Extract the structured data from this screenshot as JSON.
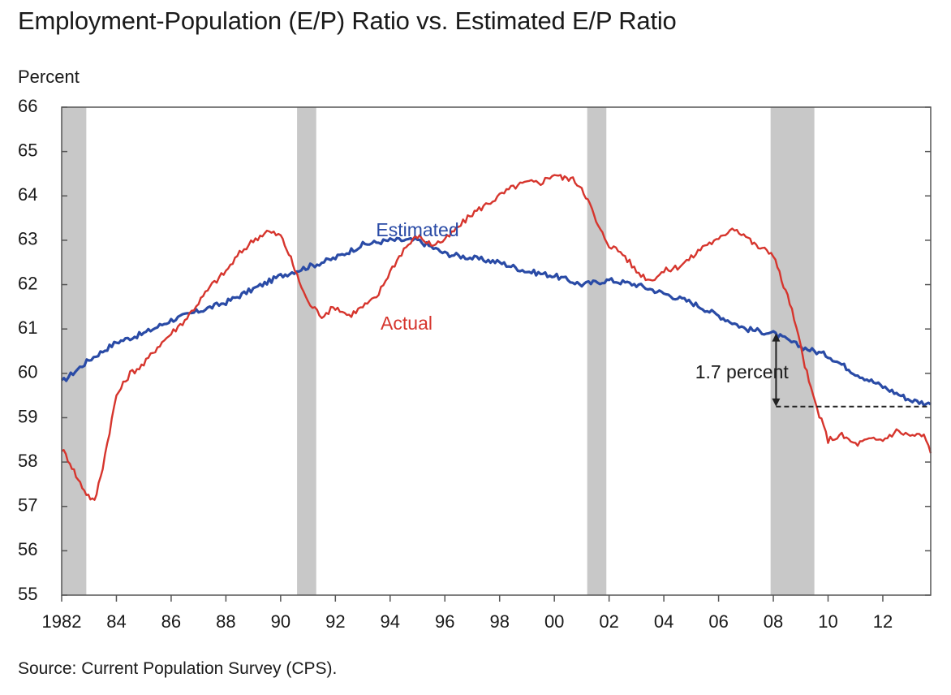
{
  "title": "Employment-Population (E/P) Ratio vs. Estimated E/P Ratio",
  "source": "Source: Current Population Survey (CPS).",
  "chart_data": {
    "type": "line",
    "title": "Employment-Population (E/P) Ratio vs. Estimated E/P Ratio",
    "ylabel": "Percent",
    "xlabel": "",
    "xlim": [
      1982.0,
      2013.75
    ],
    "ylim": [
      55,
      66
    ],
    "yticks": [
      "55",
      "56",
      "57",
      "58",
      "59",
      "60",
      "61",
      "62",
      "63",
      "64",
      "65",
      "66"
    ],
    "xticks": [
      {
        "x": 1982,
        "label": "1982"
      },
      {
        "x": 1984,
        "label": "84"
      },
      {
        "x": 1986,
        "label": "86"
      },
      {
        "x": 1988,
        "label": "88"
      },
      {
        "x": 1990,
        "label": "90"
      },
      {
        "x": 1992,
        "label": "92"
      },
      {
        "x": 1994,
        "label": "94"
      },
      {
        "x": 1996,
        "label": "96"
      },
      {
        "x": 1998,
        "label": "98"
      },
      {
        "x": 2000,
        "label": "00"
      },
      {
        "x": 2002,
        "label": "02"
      },
      {
        "x": 2004,
        "label": "04"
      },
      {
        "x": 2006,
        "label": "06"
      },
      {
        "x": 2008,
        "label": "08"
      },
      {
        "x": 2010,
        "label": "10"
      },
      {
        "x": 2012,
        "label": "12"
      }
    ],
    "grid": false,
    "recessions": [
      [
        1982.0,
        1982.9
      ],
      [
        1990.6,
        1991.3
      ],
      [
        2001.2,
        2001.9
      ],
      [
        2007.9,
        2009.5
      ]
    ],
    "series": [
      {
        "name": "Estimated",
        "color": "#2a4ba6",
        "x": [
          1982.0,
          1983.0,
          1984.0,
          1985.0,
          1986.0,
          1987.0,
          1988.0,
          1989.0,
          1990.0,
          1991.0,
          1992.0,
          1993.0,
          1994.0,
          1995.0,
          1996.0,
          1997.0,
          1998.0,
          1999.0,
          2000.0,
          2001.0,
          2002.0,
          2003.0,
          2004.0,
          2005.0,
          2006.0,
          2007.0,
          2008.0,
          2009.0,
          2010.0,
          2011.0,
          2012.0,
          2013.0,
          2013.75
        ],
        "y": [
          59.8,
          60.3,
          60.7,
          60.9,
          61.2,
          61.4,
          61.6,
          61.9,
          62.2,
          62.4,
          62.6,
          62.9,
          63.0,
          63.0,
          62.7,
          62.6,
          62.5,
          62.3,
          62.2,
          62.0,
          62.1,
          62.0,
          61.8,
          61.6,
          61.3,
          61.0,
          60.9,
          60.6,
          60.4,
          60.0,
          59.7,
          59.4,
          59.3
        ]
      },
      {
        "name": "Actual",
        "color": "#d6352d",
        "x": [
          1982.0,
          1982.3,
          1982.6,
          1982.9,
          1983.2,
          1983.5,
          1984.0,
          1984.5,
          1985.0,
          1985.5,
          1986.0,
          1986.5,
          1987.0,
          1987.5,
          1988.0,
          1988.5,
          1989.0,
          1989.5,
          1990.0,
          1990.3,
          1990.6,
          1991.0,
          1991.5,
          1992.0,
          1992.5,
          1993.0,
          1993.5,
          1994.0,
          1994.5,
          1995.0,
          1995.5,
          1996.0,
          1996.5,
          1997.0,
          1997.5,
          1998.0,
          1998.5,
          1999.0,
          1999.5,
          2000.0,
          2000.3,
          2000.6,
          2001.0,
          2001.3,
          2001.6,
          2002.0,
          2002.5,
          2003.0,
          2003.5,
          2004.0,
          2004.5,
          2005.0,
          2005.5,
          2006.0,
          2006.5,
          2007.0,
          2007.3,
          2007.6,
          2008.0,
          2008.3,
          2008.6,
          2009.0,
          2009.3,
          2009.6,
          2010.0,
          2010.5,
          2011.0,
          2011.5,
          2012.0,
          2012.5,
          2013.0,
          2013.5,
          2013.75
        ],
        "y": [
          58.3,
          58.0,
          57.6,
          57.3,
          57.1,
          57.9,
          59.5,
          60.0,
          60.2,
          60.6,
          60.9,
          61.2,
          61.6,
          62.0,
          62.3,
          62.7,
          63.0,
          63.2,
          63.1,
          62.7,
          62.2,
          61.6,
          61.3,
          61.5,
          61.3,
          61.5,
          61.7,
          62.3,
          62.8,
          63.1,
          62.9,
          63.0,
          63.3,
          63.6,
          63.8,
          64.0,
          64.2,
          64.3,
          64.3,
          64.5,
          64.4,
          64.4,
          64.2,
          63.8,
          63.3,
          62.9,
          62.7,
          62.3,
          62.1,
          62.3,
          62.4,
          62.6,
          62.9,
          63.0,
          63.3,
          63.1,
          62.9,
          62.8,
          62.7,
          62.1,
          61.6,
          60.6,
          59.8,
          59.2,
          58.5,
          58.6,
          58.4,
          58.5,
          58.5,
          58.7,
          58.6,
          58.6,
          58.2
        ]
      }
    ],
    "annotations": [
      {
        "text": "Estimated",
        "color": "#2a4ba6",
        "x": 1995.0,
        "y": 63.2
      },
      {
        "text": "Actual",
        "color": "#d6352d",
        "x": 1994.6,
        "y": 61.1
      },
      {
        "text": "1.7 percent",
        "color": "#1a1a1a",
        "x": 2006.85,
        "y": 60.0
      },
      {
        "type": "gap-bracket",
        "x": 2008.1,
        "y_from": 59.25,
        "y_to": 60.9,
        "dashed_to_x": 2013.75
      }
    ]
  }
}
